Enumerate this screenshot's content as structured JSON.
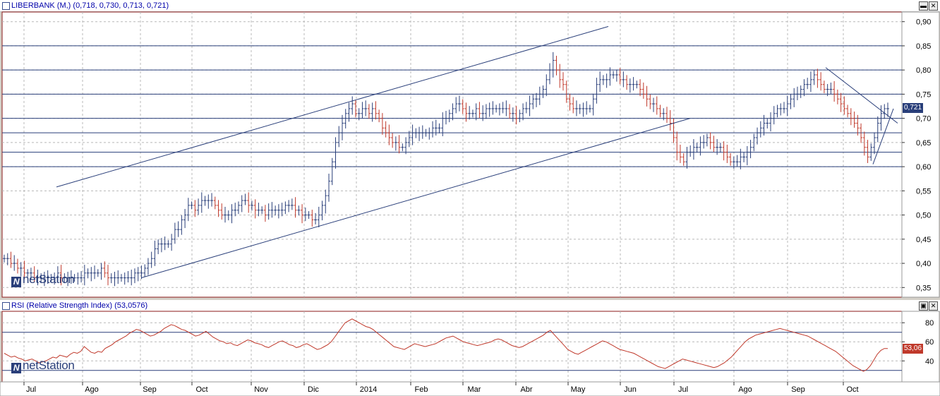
{
  "price_panel": {
    "title": "LIBERBANK (M,) (0,718, 0,730, 0,713, 0,721)",
    "current_value": "0,721",
    "value_bg": "#2a3f7a"
  },
  "rsi_panel": {
    "title": "RSI (Relative Strength Index) (53,0576)",
    "current_value": "53,06",
    "value_bg": "#c0392b"
  },
  "watermark": {
    "text": "netStation",
    "logo_glyph": "N"
  },
  "x_axis_labels": [
    "Jul",
    "Ago",
    "Sep",
    "Oct",
    "Nov",
    "Dic",
    "2014",
    "Feb",
    "Mar",
    "Abr",
    "May",
    "Jun",
    "Jul",
    "Ago",
    "Sep",
    "Oct"
  ],
  "colors": {
    "up": "#2a3f7a",
    "down": "#c0392b",
    "rsi_line": "#c0392b",
    "grid": "#b8b8b8",
    "hline": "#2a3f7a"
  },
  "chart_data": [
    {
      "type": "ohlc",
      "title": "LIBERBANK (M,) (0,718, 0,730, 0,713, 0,721)",
      "yticks": [
        "0,90",
        "0,85",
        "0,80",
        "0,75",
        "0,70",
        "0,65",
        "0,60",
        "0,55",
        "0,50",
        "0,45",
        "0,40",
        "0,35"
      ],
      "ylim": [
        0.33,
        0.92
      ],
      "horizontal_levels": [
        0.85,
        0.8,
        0.75,
        0.7,
        0.67,
        0.63,
        0.6
      ],
      "last": {
        "open": 0.718,
        "high": 0.73,
        "low": 0.713,
        "close": 0.721
      },
      "close_series": [
        0.41,
        0.41,
        0.4,
        0.4,
        0.39,
        0.39,
        0.38,
        0.38,
        0.38,
        0.37,
        0.37,
        0.37,
        0.37,
        0.37,
        0.37,
        0.37,
        0.38,
        0.37,
        0.37,
        0.37,
        0.37,
        0.37,
        0.37,
        0.37,
        0.38,
        0.38,
        0.38,
        0.38,
        0.38,
        0.39,
        0.38,
        0.37,
        0.37,
        0.37,
        0.37,
        0.37,
        0.37,
        0.37,
        0.37,
        0.38,
        0.38,
        0.38,
        0.39,
        0.4,
        0.41,
        0.43,
        0.44,
        0.44,
        0.44,
        0.44,
        0.45,
        0.47,
        0.47,
        0.49,
        0.5,
        0.52,
        0.52,
        0.51,
        0.52,
        0.53,
        0.53,
        0.53,
        0.53,
        0.52,
        0.51,
        0.5,
        0.5,
        0.5,
        0.51,
        0.51,
        0.52,
        0.53,
        0.53,
        0.52,
        0.52,
        0.51,
        0.51,
        0.51,
        0.5,
        0.51,
        0.51,
        0.51,
        0.51,
        0.51,
        0.52,
        0.52,
        0.52,
        0.51,
        0.51,
        0.5,
        0.5,
        0.5,
        0.49,
        0.49,
        0.5,
        0.52,
        0.54,
        0.57,
        0.61,
        0.65,
        0.67,
        0.69,
        0.71,
        0.72,
        0.73,
        0.71,
        0.71,
        0.72,
        0.72,
        0.71,
        0.72,
        0.71,
        0.7,
        0.68,
        0.67,
        0.66,
        0.65,
        0.65,
        0.64,
        0.64,
        0.65,
        0.66,
        0.67,
        0.67,
        0.67,
        0.67,
        0.67,
        0.67,
        0.68,
        0.68,
        0.68,
        0.7,
        0.7,
        0.71,
        0.72,
        0.73,
        0.73,
        0.72,
        0.71,
        0.71,
        0.71,
        0.72,
        0.71,
        0.71,
        0.72,
        0.72,
        0.72,
        0.72,
        0.72,
        0.72,
        0.72,
        0.71,
        0.71,
        0.7,
        0.71,
        0.72,
        0.72,
        0.73,
        0.74,
        0.74,
        0.75,
        0.76,
        0.78,
        0.8,
        0.82,
        0.8,
        0.78,
        0.77,
        0.74,
        0.73,
        0.72,
        0.72,
        0.72,
        0.72,
        0.72,
        0.72,
        0.74,
        0.77,
        0.78,
        0.78,
        0.78,
        0.79,
        0.79,
        0.79,
        0.78,
        0.78,
        0.77,
        0.77,
        0.77,
        0.77,
        0.76,
        0.75,
        0.74,
        0.73,
        0.73,
        0.72,
        0.71,
        0.71,
        0.7,
        0.69,
        0.66,
        0.63,
        0.62,
        0.61,
        0.63,
        0.63,
        0.64,
        0.64,
        0.65,
        0.65,
        0.66,
        0.65,
        0.64,
        0.64,
        0.64,
        0.63,
        0.62,
        0.61,
        0.61,
        0.61,
        0.62,
        0.62,
        0.63,
        0.64,
        0.66,
        0.67,
        0.68,
        0.69,
        0.69,
        0.7,
        0.71,
        0.72,
        0.72,
        0.72,
        0.73,
        0.74,
        0.75,
        0.75,
        0.76,
        0.77,
        0.77,
        0.78,
        0.79,
        0.78,
        0.77,
        0.76,
        0.76,
        0.76,
        0.75,
        0.74,
        0.73,
        0.72,
        0.71,
        0.7,
        0.69,
        0.68,
        0.66,
        0.64,
        0.62,
        0.64,
        0.66,
        0.69,
        0.71,
        0.72,
        0.72
      ]
    },
    {
      "type": "line",
      "title": "RSI (Relative Strength Index) (53,0576)",
      "yticks": [
        "80",
        "60",
        "40"
      ],
      "ylim": [
        18,
        92
      ],
      "horizontal_levels": [
        70,
        30
      ],
      "values": [
        48,
        46,
        44,
        45,
        43,
        42,
        40,
        41,
        42,
        40,
        38,
        39,
        40,
        42,
        44,
        43,
        46,
        45,
        44,
        47,
        49,
        48,
        50,
        55,
        52,
        49,
        48,
        50,
        49,
        53,
        55,
        57,
        60,
        62,
        64,
        66,
        69,
        71,
        73,
        72,
        70,
        68,
        66,
        67,
        69,
        71,
        74,
        76,
        78,
        77,
        75,
        73,
        72,
        70,
        68,
        66,
        67,
        69,
        71,
        68,
        65,
        63,
        61,
        60,
        58,
        59,
        57,
        56,
        58,
        60,
        62,
        61,
        59,
        58,
        57,
        55,
        54,
        56,
        58,
        60,
        61,
        59,
        57,
        56,
        54,
        55,
        57,
        58,
        56,
        54,
        52,
        53,
        55,
        57,
        60,
        65,
        70,
        75,
        80,
        82,
        84,
        82,
        80,
        78,
        76,
        75,
        73,
        70,
        67,
        64,
        61,
        58,
        55,
        54,
        53,
        52,
        54,
        56,
        58,
        57,
        56,
        55,
        56,
        57,
        58,
        60,
        62,
        64,
        65,
        66,
        64,
        62,
        60,
        59,
        58,
        57,
        56,
        57,
        58,
        59,
        60,
        62,
        63,
        62,
        60,
        58,
        56,
        55,
        54,
        55,
        57,
        59,
        61,
        63,
        65,
        67,
        70,
        72,
        68,
        64,
        60,
        56,
        52,
        50,
        48,
        47,
        49,
        51,
        53,
        55,
        57,
        59,
        61,
        60,
        58,
        56,
        54,
        52,
        51,
        50,
        49,
        48,
        46,
        44,
        42,
        40,
        38,
        36,
        34,
        33,
        32,
        34,
        36,
        38,
        40,
        42,
        41,
        40,
        39,
        38,
        37,
        36,
        35,
        34,
        33,
        34,
        36,
        38,
        41,
        44,
        48,
        52,
        56,
        60,
        63,
        65,
        67,
        68,
        69,
        70,
        71,
        72,
        73,
        74,
        73,
        72,
        71,
        70,
        69,
        68,
        67,
        66,
        64,
        62,
        60,
        58,
        56,
        54,
        52,
        50,
        47,
        44,
        41,
        38,
        35,
        33,
        31,
        29,
        31,
        35,
        41,
        47,
        51,
        53,
        53
      ]
    }
  ]
}
